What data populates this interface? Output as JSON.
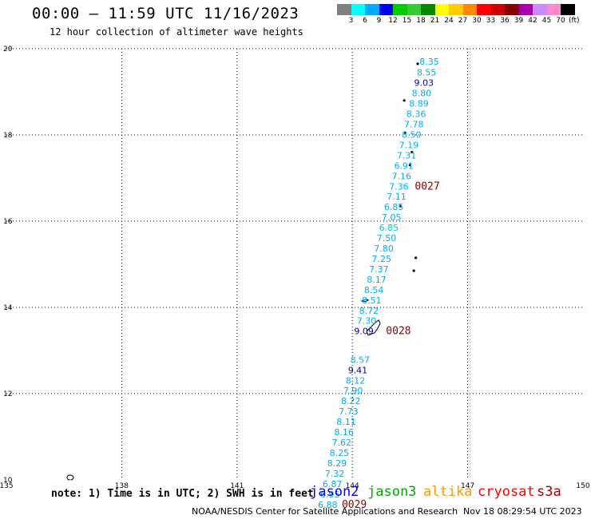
{
  "title": "00:00 – 11:59 UTC 11/16/2023",
  "subtitle": "12 hour collection of altimeter wave heights",
  "colorbar": {
    "colors": [
      "#808080",
      "#00ffff",
      "#00aaff",
      "#0000ff",
      "#00cc00",
      "#33cc33",
      "#008800",
      "#ffff00",
      "#ffcc00",
      "#ff8800",
      "#ff0000",
      "#cc0000",
      "#880000",
      "#aa00aa",
      "#cc88ff",
      "#ff88cc",
      "#000000"
    ],
    "labels": [
      "3",
      "6",
      "9",
      "12",
      "15",
      "18",
      "21",
      "24",
      "27",
      "30",
      "33",
      "36",
      "39",
      "42",
      "45",
      "70"
    ],
    "unit": "(ft)"
  },
  "map": {
    "lon_range": [
      135,
      150
    ],
    "lat_range": [
      10,
      20
    ],
    "lon_ticks": [
      "135",
      "138",
      "141",
      "144",
      "147",
      "150"
    ],
    "lat_ticks": [
      "20",
      "18",
      "16",
      "14",
      "12",
      "10"
    ],
    "grid": "dotted"
  },
  "wave_labels": [
    {
      "lat": 19.7,
      "lon": 146.0,
      "value": "8.35",
      "color": "#00aaff"
    },
    {
      "lat": 19.45,
      "lon": 145.93,
      "value": "8.55",
      "color": "#00aaff"
    },
    {
      "lat": 19.21,
      "lon": 145.86,
      "value": "9.03",
      "color": "#0000cc"
    },
    {
      "lat": 18.97,
      "lon": 145.8,
      "value": "8.80",
      "color": "#00aaff"
    },
    {
      "lat": 18.73,
      "lon": 145.73,
      "value": "8.89",
      "color": "#00aaff"
    },
    {
      "lat": 18.49,
      "lon": 145.66,
      "value": "8.36",
      "color": "#00aaff"
    },
    {
      "lat": 18.25,
      "lon": 145.6,
      "value": "7.78",
      "color": "#00aaff"
    },
    {
      "lat": 18.01,
      "lon": 145.54,
      "value": "8.50",
      "color": "#00aaff"
    },
    {
      "lat": 17.77,
      "lon": 145.47,
      "value": "7.19",
      "color": "#00aaff"
    },
    {
      "lat": 17.53,
      "lon": 145.41,
      "value": "7.31",
      "color": "#00aaff"
    },
    {
      "lat": 17.29,
      "lon": 145.34,
      "value": "6.91",
      "color": "#00aaff"
    },
    {
      "lat": 17.05,
      "lon": 145.28,
      "value": "7.16",
      "color": "#00aaff"
    },
    {
      "lat": 16.81,
      "lon": 145.21,
      "value": "7.36",
      "color": "#00aaff"
    },
    {
      "lat": 16.57,
      "lon": 145.15,
      "value": "7.11",
      "color": "#00aaff"
    },
    {
      "lat": 16.33,
      "lon": 145.08,
      "value": "6.85",
      "color": "#00aaff"
    },
    {
      "lat": 16.09,
      "lon": 145.02,
      "value": "7.05",
      "color": "#00aaff"
    },
    {
      "lat": 15.85,
      "lon": 144.95,
      "value": "6.85",
      "color": "#00cccc"
    },
    {
      "lat": 15.61,
      "lon": 144.89,
      "value": "7.50",
      "color": "#00aaff"
    },
    {
      "lat": 15.37,
      "lon": 144.82,
      "value": "7.80",
      "color": "#00aaff"
    },
    {
      "lat": 15.13,
      "lon": 144.76,
      "value": "7.25",
      "color": "#00aaff"
    },
    {
      "lat": 14.89,
      "lon": 144.69,
      "value": "7.37",
      "color": "#00aaff"
    },
    {
      "lat": 14.65,
      "lon": 144.63,
      "value": "8.17",
      "color": "#00aaff"
    },
    {
      "lat": 14.41,
      "lon": 144.56,
      "value": "8.54",
      "color": "#00aaff"
    },
    {
      "lat": 14.17,
      "lon": 144.5,
      "value": "8.51",
      "color": "#00aaff"
    },
    {
      "lat": 13.93,
      "lon": 144.43,
      "value": "8.72",
      "color": "#00aaff"
    },
    {
      "lat": 13.69,
      "lon": 144.37,
      "value": "7.30",
      "color": "#00aaff"
    },
    {
      "lat": 13.45,
      "lon": 144.3,
      "value": "9.09",
      "color": "#0000cc"
    },
    {
      "lat": 12.79,
      "lon": 144.2,
      "value": "8.57",
      "color": "#00aaff"
    },
    {
      "lat": 12.55,
      "lon": 144.14,
      "value": "9.41",
      "color": "#000088"
    },
    {
      "lat": 12.31,
      "lon": 144.08,
      "value": "8.12",
      "color": "#00aaff"
    },
    {
      "lat": 12.07,
      "lon": 144.02,
      "value": "7.90",
      "color": "#00aaff"
    },
    {
      "lat": 11.83,
      "lon": 143.96,
      "value": "8.22",
      "color": "#00aaff"
    },
    {
      "lat": 11.59,
      "lon": 143.9,
      "value": "7.73",
      "color": "#00aaff"
    },
    {
      "lat": 11.35,
      "lon": 143.84,
      "value": "8.11",
      "color": "#00aaff"
    },
    {
      "lat": 11.11,
      "lon": 143.78,
      "value": "8.16",
      "color": "#00aaff"
    },
    {
      "lat": 10.87,
      "lon": 143.72,
      "value": "7.62",
      "color": "#00aaff"
    },
    {
      "lat": 10.63,
      "lon": 143.66,
      "value": "8.25",
      "color": "#00aaff"
    },
    {
      "lat": 10.39,
      "lon": 143.6,
      "value": "8.29",
      "color": "#00aaff"
    },
    {
      "lat": 10.15,
      "lon": 143.54,
      "value": "7.32",
      "color": "#00aaff"
    },
    {
      "lat": 9.91,
      "lon": 143.48,
      "value": "6.87",
      "color": "#00aaff"
    },
    {
      "lat": 9.67,
      "lon": 143.42,
      "value": "6.95",
      "color": "#00aaff"
    },
    {
      "lat": 9.43,
      "lon": 143.36,
      "value": "6.88",
      "color": "#00aaff"
    }
  ],
  "pass_labels": [
    {
      "lat": 16.81,
      "lon": 145.95,
      "value": "0027",
      "color": "#880000"
    },
    {
      "lat": 13.45,
      "lon": 145.2,
      "value": "0028",
      "color": "#880000"
    },
    {
      "lat": 9.43,
      "lon": 144.05,
      "value": "0029",
      "color": "#880000"
    }
  ],
  "note": "note: 1) Time is in UTC; 2) SWH is in feet",
  "satellites": [
    {
      "name": "jason2",
      "color": "#0000ff"
    },
    {
      "name": "jason3",
      "color": "#00aa00"
    },
    {
      "name": "altika",
      "color": "#ff9900"
    },
    {
      "name": "cryosat",
      "color": "#ff0000"
    },
    {
      "name": "s3a",
      "color": "#aa0000"
    }
  ],
  "footer": "NOAA/NESDIS Center for Satellite Applications and Research",
  "footer_time": "Nov 18 08:29:54 UTC 2023"
}
